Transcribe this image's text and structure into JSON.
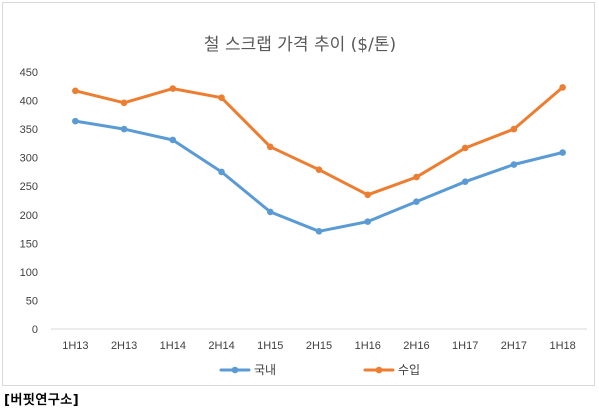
{
  "chart_data": {
    "type": "line",
    "title": "철 스크랩 가격 추이 ($/톤)",
    "categories": [
      "1H13",
      "2H13",
      "1H14",
      "2H14",
      "1H15",
      "2H15",
      "1H16",
      "2H16",
      "1H17",
      "2H17",
      "1H18"
    ],
    "series": [
      {
        "name": "국내",
        "color": "#5b9bd5",
        "values": [
          364,
          350,
          331,
          275,
          205,
          171,
          188,
          223,
          258,
          288,
          309
        ]
      },
      {
        "name": "수입",
        "color": "#ed7d31",
        "values": [
          417,
          396,
          421,
          405,
          319,
          279,
          235,
          266,
          317,
          350,
          423
        ]
      }
    ],
    "ylim": [
      0,
      450
    ],
    "yticks": [
      0,
      50,
      100,
      150,
      200,
      250,
      300,
      350,
      400,
      450
    ],
    "grid": false,
    "legend_position": "bottom"
  },
  "source": "[버핏연구소]"
}
